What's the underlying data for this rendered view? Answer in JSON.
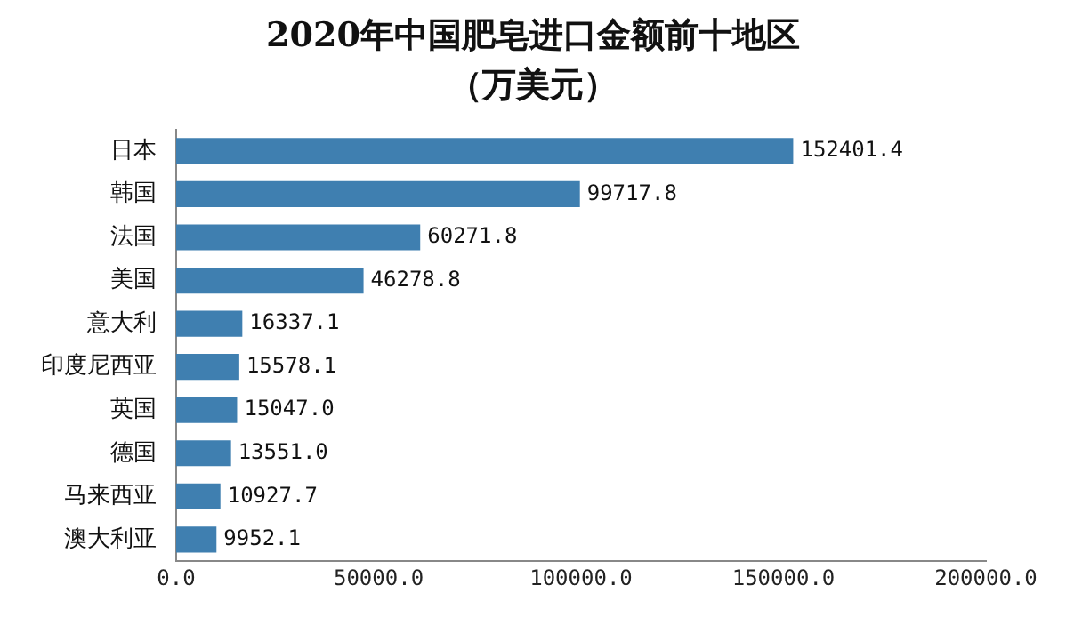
{
  "chart_data": {
    "type": "bar",
    "orientation": "horizontal",
    "title": "2020年中国肥皂进口金额前十地区",
    "subtitle": "（万美元）",
    "categories": [
      "日本",
      "韩国",
      "法国",
      "美国",
      "意大利",
      "印度尼西亚",
      "英国",
      "德国",
      "马来西亚",
      "澳大利亚"
    ],
    "values": [
      152401.4,
      99717.8,
      60271.8,
      46278.8,
      16337.1,
      15578.1,
      15047.0,
      13551.0,
      10927.7,
      9952.1
    ],
    "value_labels": [
      "152401.4",
      "99717.8",
      "60271.8",
      "46278.8",
      "16337.1",
      "15578.1",
      "15047.0",
      "13551.0",
      "10927.7",
      "9952.1"
    ],
    "color": "#3f7fb0",
    "xlim": [
      0,
      200000
    ],
    "xticks": [
      {
        "value": 0,
        "label": "0.0"
      },
      {
        "value": 50000,
        "label": "50000.0"
      },
      {
        "value": 100000,
        "label": "100000.0"
      },
      {
        "value": 150000,
        "label": "150000.0"
      },
      {
        "value": 200000,
        "label": "200000.0"
      }
    ],
    "grid": false,
    "legend": false
  }
}
